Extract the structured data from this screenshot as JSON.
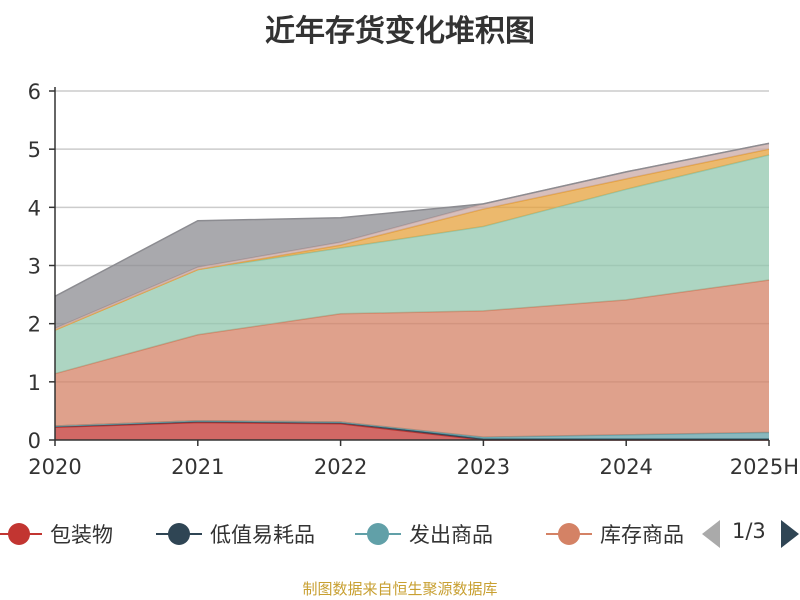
{
  "chart_data": {
    "type": "area",
    "stacked": true,
    "title": "近年存货变化堆积图",
    "ylabel": "",
    "categories": [
      "2020",
      "2021",
      "2022",
      "2023",
      "2024",
      "2025H"
    ],
    "ylim": [
      0,
      6
    ],
    "yticks": [
      "0",
      "1",
      "2",
      "3",
      "4",
      "5",
      "6"
    ],
    "grid": true,
    "legend_position": "bottom",
    "series": [
      {
        "name": "包装物",
        "color": "#c23531",
        "values": [
          0.22,
          0.3,
          0.28,
          0.0,
          0.0,
          0.0
        ]
      },
      {
        "name": "低值易耗品",
        "color": "#2f4554",
        "values": [
          0.02,
          0.03,
          0.03,
          0.02,
          0.02,
          0.02
        ]
      },
      {
        "name": "发出商品",
        "color": "#61a0a8",
        "values": [
          0.0,
          0.0,
          0.0,
          0.03,
          0.07,
          0.11
        ]
      },
      {
        "name": "库存商品",
        "color": "#d48265",
        "values": [
          0.9,
          1.48,
          1.86,
          2.17,
          2.32,
          2.62
        ]
      },
      {
        "name": "",
        "color": "#91c7ae",
        "values": [
          0.75,
          1.12,
          1.13,
          1.45,
          1.9,
          2.15
        ]
      },
      {
        "name": "",
        "color": "#e6a23c",
        "values": [
          0.0,
          0.0,
          0.05,
          0.3,
          0.18,
          0.1
        ]
      },
      {
        "name": "",
        "color": "#c9a9a6",
        "values": [
          0.03,
          0.04,
          0.05,
          0.09,
          0.12,
          0.1
        ]
      },
      {
        "name": "",
        "color": "#8c8c91",
        "values": [
          0.55,
          0.8,
          0.42,
          0.0,
          0.0,
          0.0
        ]
      }
    ]
  },
  "legend": {
    "items": [
      {
        "label": "包装物",
        "color": "#c23531"
      },
      {
        "label": "低值易耗品",
        "color": "#2f4554"
      },
      {
        "label": "发出商品",
        "color": "#61a0a8"
      },
      {
        "label": "库存商品",
        "color": "#d48265"
      }
    ],
    "page": "1/3"
  },
  "source": "制图数据来自恒生聚源数据库"
}
